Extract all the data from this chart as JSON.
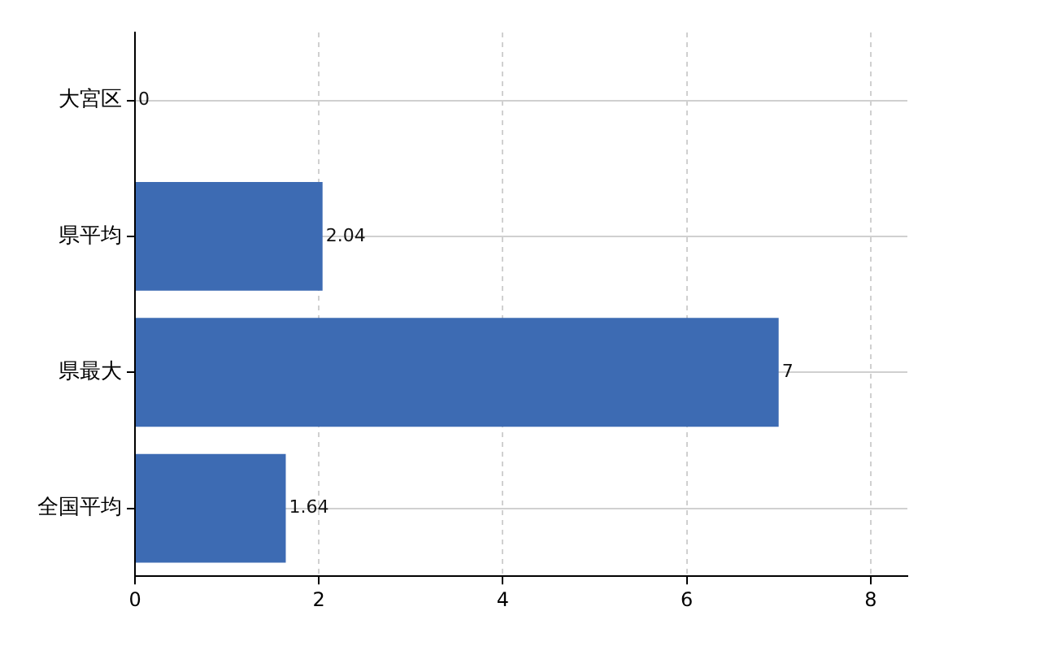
{
  "chart_data": {
    "type": "bar",
    "orientation": "horizontal",
    "categories": [
      "大宮区",
      "県平均",
      "県最大",
      "全国平均"
    ],
    "values": [
      0,
      2.04,
      7,
      1.64
    ],
    "color": "#3d6bb3",
    "xlim": [
      0,
      8.4
    ],
    "xticks": [
      0,
      2,
      4,
      6,
      8
    ],
    "grid": true,
    "data_labels": true
  }
}
